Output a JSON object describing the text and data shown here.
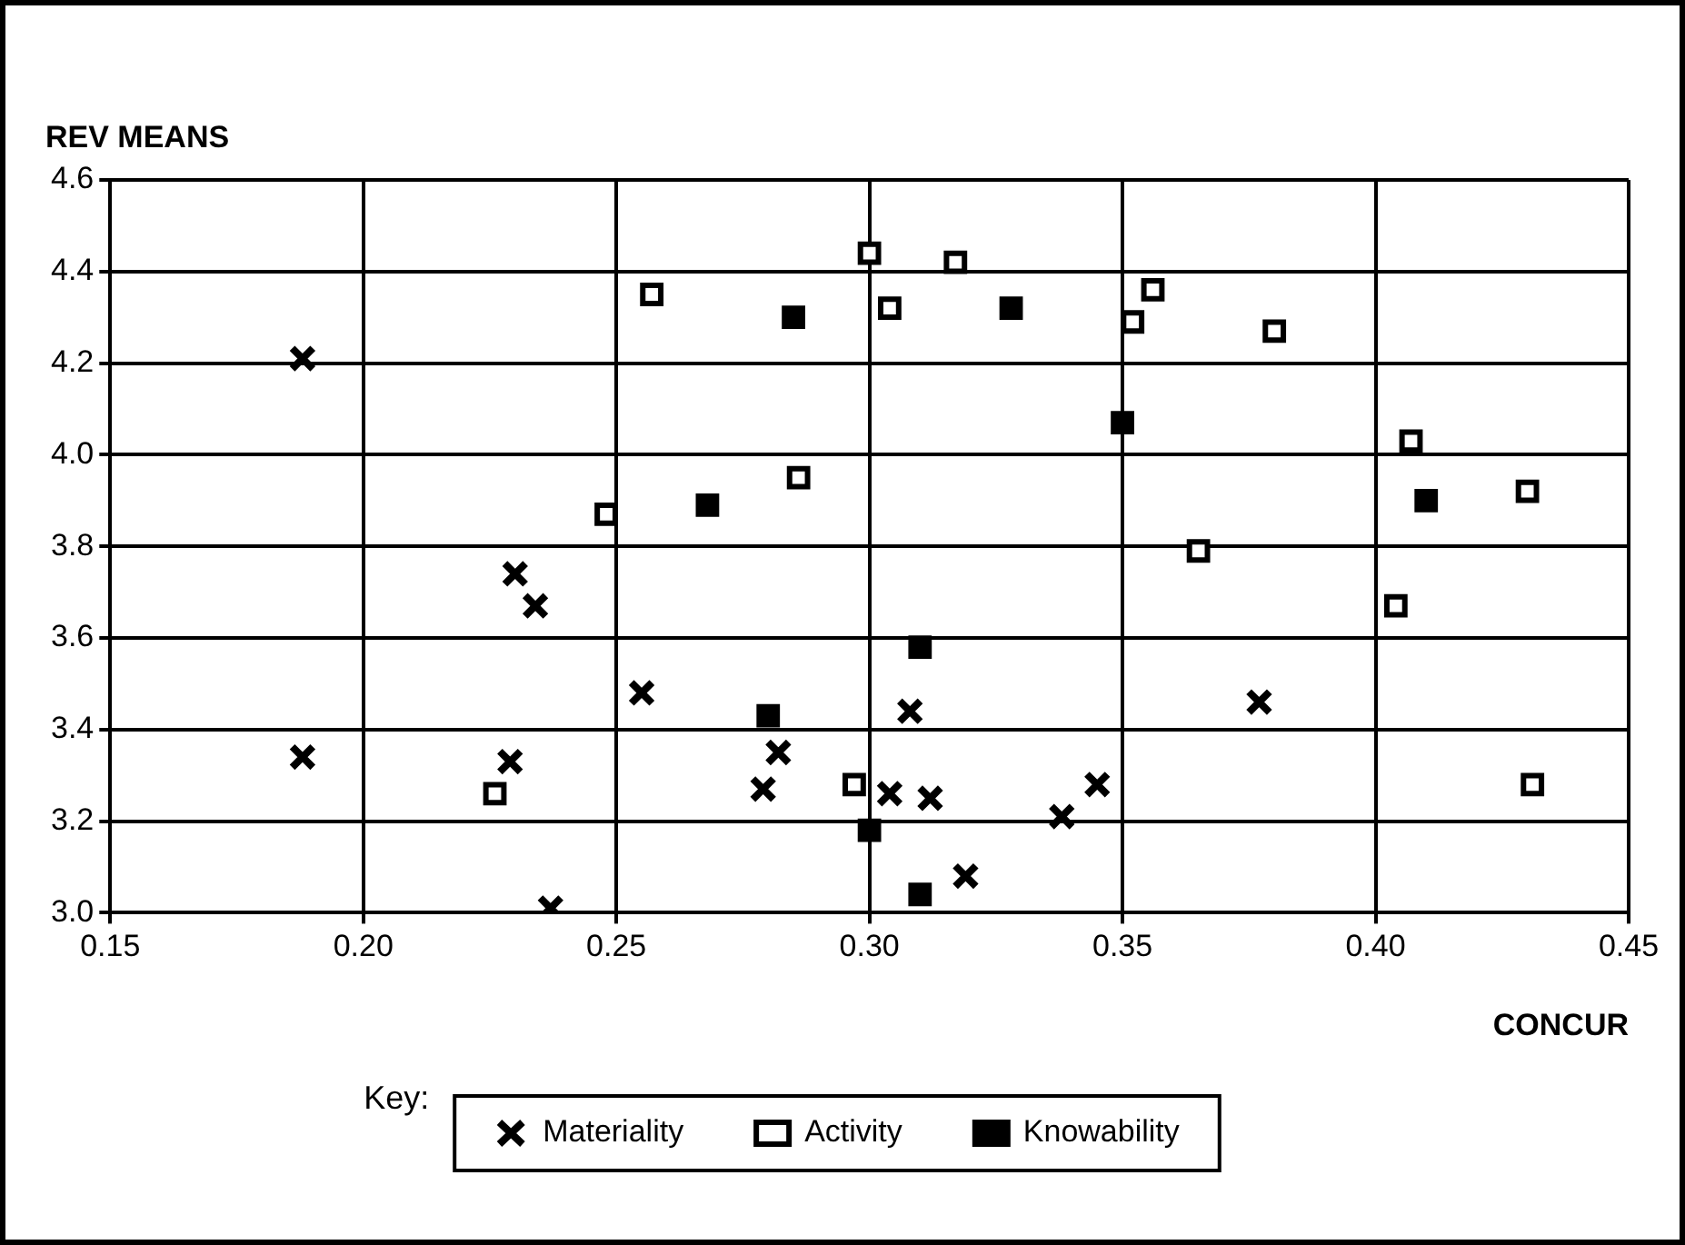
{
  "chart_data": {
    "type": "scatter",
    "xlabel": "CONCUR",
    "ylabel": "REV MEANS",
    "legend_title": "Key:",
    "legend": "bottom",
    "grid": true,
    "xlim": [
      0.15,
      0.45
    ],
    "xticks": [
      {
        "value": 0.15,
        "label": "0.15"
      },
      {
        "value": 0.2,
        "label": "0.20"
      },
      {
        "value": 0.25,
        "label": "0.25"
      },
      {
        "value": 0.3,
        "label": "0.30"
      },
      {
        "value": 0.35,
        "label": "0.35"
      },
      {
        "value": 0.4,
        "label": "0.40"
      },
      {
        "value": 0.45,
        "label": "0.45"
      }
    ],
    "ylim": [
      3.0,
      4.6
    ],
    "yticks": [
      {
        "value": 3.0,
        "label": "3.0"
      },
      {
        "value": 3.2,
        "label": "3.2"
      },
      {
        "value": 3.4,
        "label": "3.4"
      },
      {
        "value": 3.6,
        "label": "3.6"
      },
      {
        "value": 3.8,
        "label": "3.8"
      },
      {
        "value": 4.0,
        "label": "4.0"
      },
      {
        "value": 4.2,
        "label": "4.2"
      },
      {
        "value": 4.4,
        "label": "4.4"
      },
      {
        "value": 4.6,
        "label": "4.6"
      }
    ],
    "series": [
      {
        "name": "Materiality",
        "color": "#000000",
        "marker": "cross",
        "x": [
          0.188,
          0.188,
          0.23,
          0.234,
          0.229,
          0.237,
          0.255,
          0.282,
          0.279,
          0.308,
          0.304,
          0.312,
          0.319,
          0.338,
          0.345,
          0.377
        ],
        "values": [
          4.21,
          3.34,
          3.74,
          3.67,
          3.33,
          3.01,
          3.48,
          3.35,
          3.27,
          3.44,
          3.26,
          3.25,
          3.08,
          3.21,
          3.28,
          3.46
        ]
      },
      {
        "name": "Activity",
        "color": "#ffffff",
        "marker": "square",
        "x": [
          0.226,
          0.248,
          0.257,
          0.286,
          0.297,
          0.3,
          0.304,
          0.317,
          0.352,
          0.356,
          0.38,
          0.365,
          0.404,
          0.407,
          0.43,
          0.431
        ],
        "values": [
          3.26,
          3.87,
          4.35,
          3.95,
          3.28,
          4.44,
          4.32,
          4.42,
          4.29,
          4.36,
          4.27,
          3.79,
          3.67,
          4.03,
          3.92,
          3.28
        ]
      },
      {
        "name": "Knowability",
        "color": "#000000",
        "marker": "square",
        "x": [
          0.268,
          0.28,
          0.285,
          0.3,
          0.31,
          0.31,
          0.328,
          0.35,
          0.41
        ],
        "values": [
          3.89,
          3.43,
          4.3,
          3.18,
          3.58,
          3.04,
          4.32,
          4.07,
          3.9
        ]
      }
    ]
  }
}
